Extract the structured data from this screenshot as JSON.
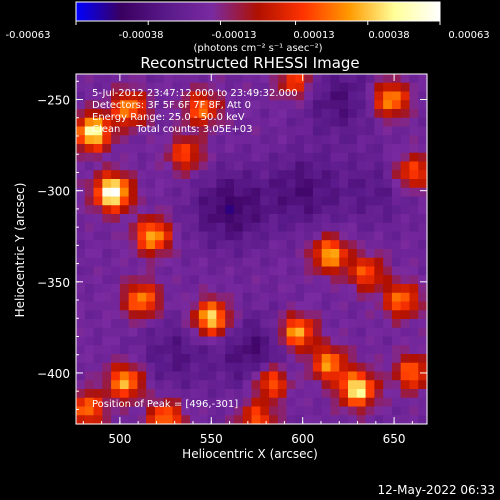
{
  "chart_data": {
    "type": "heatmap",
    "title": "Reconstructed RHESSI Image",
    "xlabel": "Heliocentric X (arcsec)",
    "ylabel": "Heliocentric Y (arcsec)",
    "xlim": [
      476,
      668
    ],
    "ylim": [
      -428,
      -236
    ],
    "x_ticks": [
      500,
      550,
      600,
      650
    ],
    "y_ticks": [
      -250,
      -300,
      -350,
      -400
    ],
    "colorbar": {
      "range": [
        -0.00063,
        0.00063
      ],
      "ticks": [
        "-0.00063",
        "-0.00038",
        "-0.00013",
        "0.00013",
        "0.00038",
        "0.00063"
      ],
      "tick_values": [
        -0.00063,
        -0.00038,
        -0.00013,
        0.00013,
        0.00038,
        0.00063
      ],
      "label": "(photons cm⁻² s⁻¹ asec⁻²)",
      "colormap": [
        "#0000ff",
        "#3a0060",
        "#5a1a8a",
        "#7a2aa0",
        "#b01000",
        "#ff3300",
        "#ff9900",
        "#ffff99",
        "#ffffff"
      ]
    },
    "annotations": {
      "time": "5-Jul-2012 23:47:12.000 to 23:49:32.000",
      "detectors": "Detectors: 3F 5F 6F 7F 8F, Att 0",
      "energy": "Energy Range: 25.0 - 50.0 keV",
      "method": "Clean     Total counts: 3.05E+03",
      "peak": "Position of Peak = [496,-301]"
    },
    "sources": [
      {
        "x": 496,
        "y": -301,
        "value": 0.00063
      },
      {
        "x": 485,
        "y": -268,
        "value": 0.00052
      },
      {
        "x": 505,
        "y": -255,
        "value": 0.0003
      },
      {
        "x": 518,
        "y": -325,
        "value": 0.00036
      },
      {
        "x": 512,
        "y": -360,
        "value": 0.0003
      },
      {
        "x": 545,
        "y": -255,
        "value": 0.00024
      },
      {
        "x": 550,
        "y": -370,
        "value": 0.00046
      },
      {
        "x": 536,
        "y": -280,
        "value": 0.00018
      },
      {
        "x": 615,
        "y": -335,
        "value": 0.00036
      },
      {
        "x": 635,
        "y": -345,
        "value": 0.0002
      },
      {
        "x": 597,
        "y": -378,
        "value": 0.00038
      },
      {
        "x": 630,
        "y": -409,
        "value": 0.00049
      },
      {
        "x": 614,
        "y": -395,
        "value": 0.0003
      },
      {
        "x": 654,
        "y": -360,
        "value": 0.00026
      },
      {
        "x": 503,
        "y": -405,
        "value": 0.00036
      },
      {
        "x": 482,
        "y": -420,
        "value": 0.00026
      },
      {
        "x": 575,
        "y": -425,
        "value": 0.0002
      },
      {
        "x": 648,
        "y": -250,
        "value": 0.00034
      },
      {
        "x": 660,
        "y": -290,
        "value": 0.00022
      },
      {
        "x": 525,
        "y": -425,
        "value": 0.00028
      },
      {
        "x": 583,
        "y": -405,
        "value": 0.0003
      },
      {
        "x": 660,
        "y": -400,
        "value": 0.00024
      },
      {
        "x": 596,
        "y": -240,
        "value": 0.00018
      }
    ],
    "background": [
      {
        "x": 560,
        "y": -310,
        "value": -0.0004
      },
      {
        "x": 600,
        "y": -300,
        "value": -0.00032
      },
      {
        "x": 620,
        "y": -250,
        "value": -0.0003
      },
      {
        "x": 575,
        "y": -390,
        "value": -0.00035
      },
      {
        "x": 640,
        "y": -300,
        "value": -0.0002
      },
      {
        "x": 530,
        "y": -390,
        "value": -0.00024
      }
    ]
  },
  "footer": {
    "timestamp": "12-May-2022 06:33"
  }
}
